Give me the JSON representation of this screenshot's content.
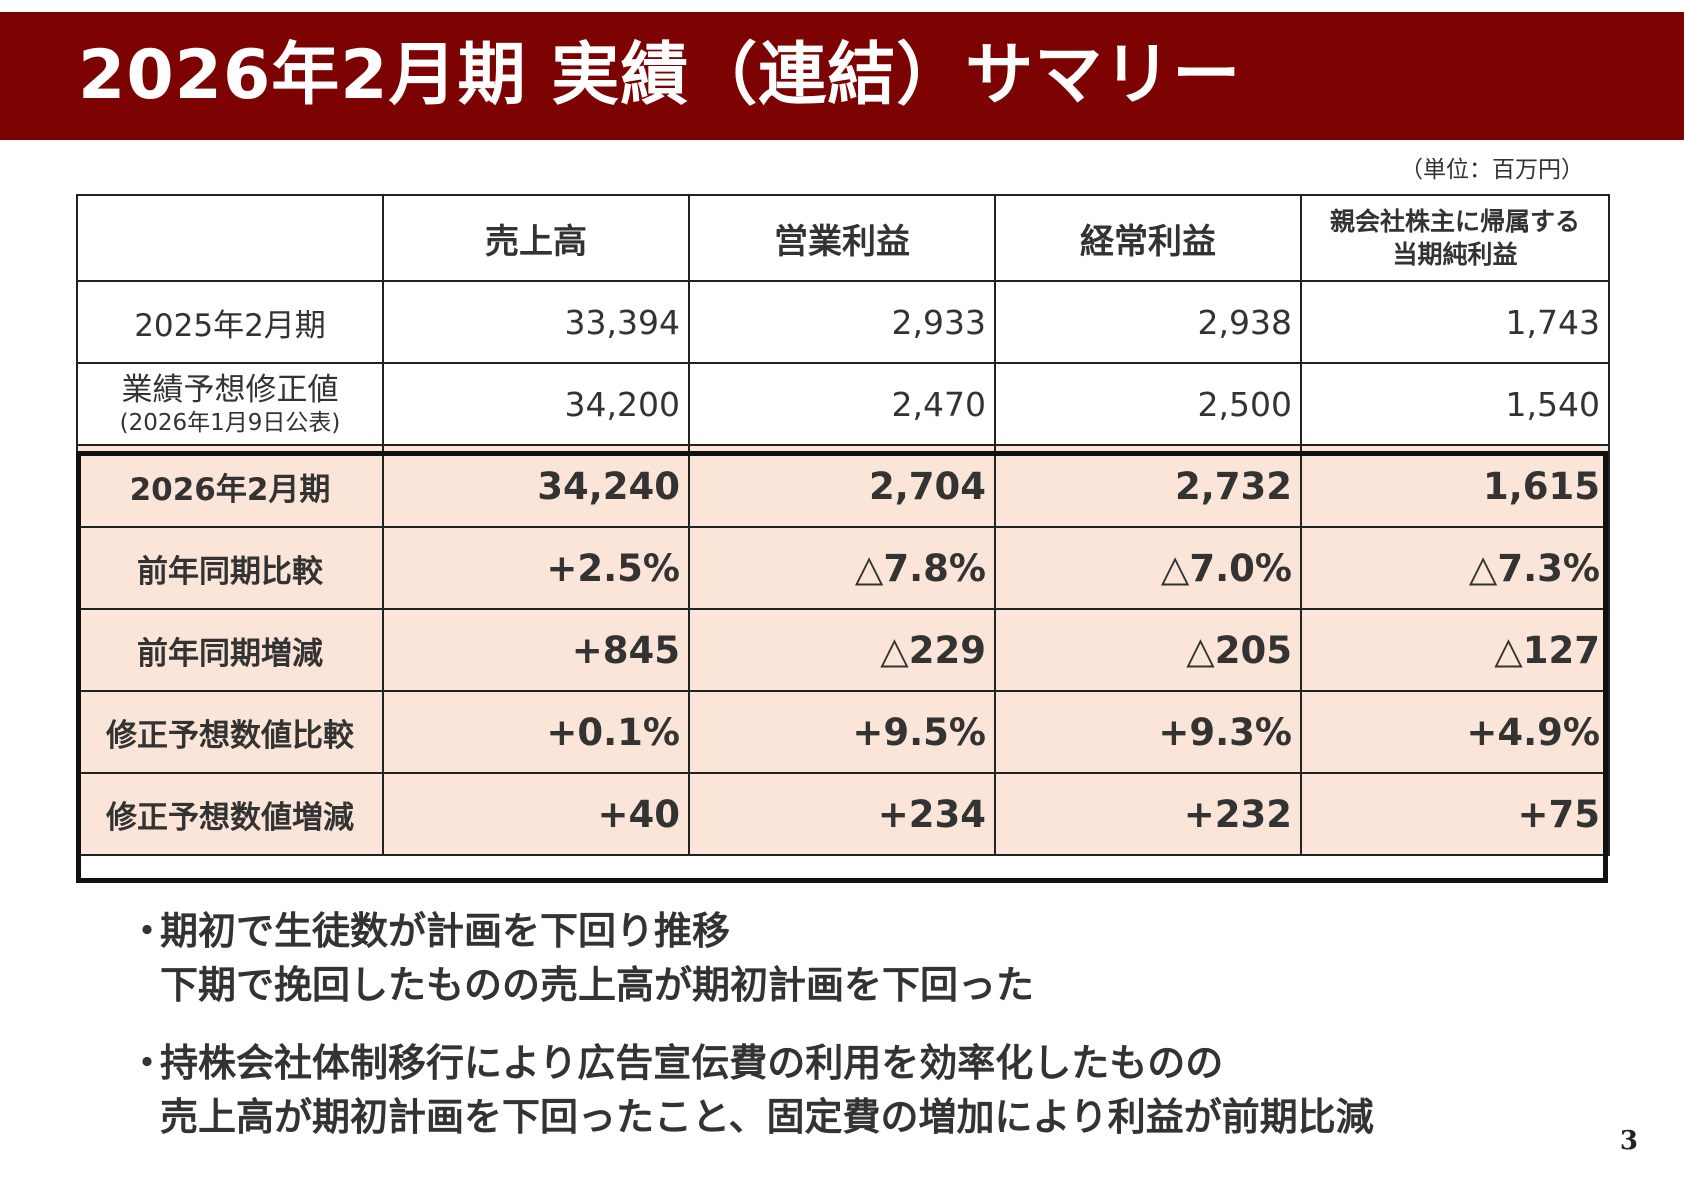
{
  "header": {
    "title": "2026年2月期 実績（連結）サマリー"
  },
  "unit_note": "（単位：百万円）",
  "table": {
    "columns": [
      "売上高",
      "営業利益",
      "経常利益",
      "親会社株主に帰属する当期純利益"
    ],
    "column_last_line1": "親会社株主に帰属する",
    "column_last_line2": "当期純利益",
    "rows": [
      {
        "label": "2025年2月期",
        "values": [
          "33,394",
          "2,933",
          "2,938",
          "1,743"
        ]
      },
      {
        "label": "業績予想修正値",
        "sublabel": "(2026年1月9日公表)",
        "values": [
          "34,200",
          "2,470",
          "2,500",
          "1,540"
        ]
      },
      {
        "label": "2026年2月期",
        "values": [
          "34,240",
          "2,704",
          "2,732",
          "1,615"
        ]
      },
      {
        "label": "前年同期比較",
        "values": [
          "+2.5%",
          "△7.8%",
          "△7.0%",
          "△7.3%"
        ]
      },
      {
        "label": "前年同期増減",
        "values": [
          "+845",
          "△229",
          "△205",
          "△127"
        ]
      },
      {
        "label": "修正予想数値比較",
        "values": [
          "+0.1%",
          "+9.5%",
          "+9.3%",
          "+4.9%"
        ]
      },
      {
        "label": "修正予想数値増減",
        "values": [
          "+40",
          "+234",
          "+232",
          "+75"
        ]
      }
    ]
  },
  "bullets": [
    {
      "mark": "・",
      "lines": [
        "期初で生徒数が計画を下回り推移",
        "下期で挽回したものの売上高が期初計画を下回った"
      ]
    },
    {
      "mark": "・",
      "lines": [
        "持株会社体制移行により広告宣伝費の利用を効率化したものの",
        "売上高が期初計画を下回ったこと、固定費の増加により利益が前期比減"
      ]
    }
  ],
  "page_number": "3",
  "colors": {
    "header_bg": "#7d0303",
    "highlight_bg": "#fbe5d9"
  }
}
